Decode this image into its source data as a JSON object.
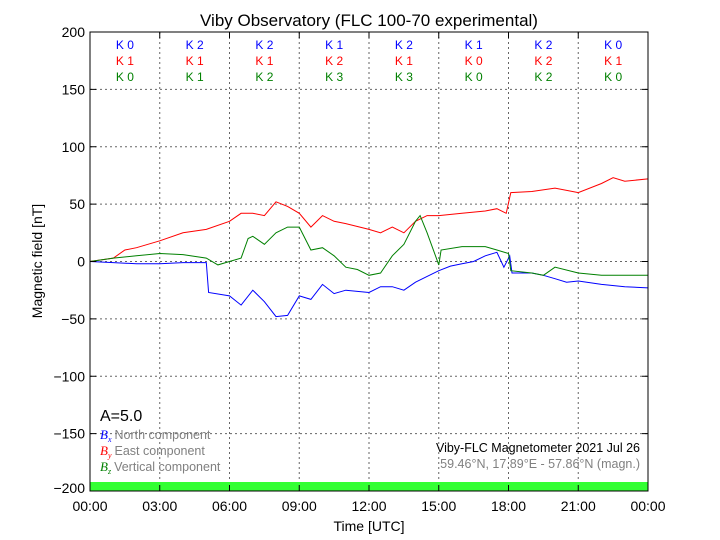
{
  "chart_data": {
    "type": "line",
    "title": "Viby Observatory (FLC 100-70 experimental)",
    "xlabel": "Time [UTC]",
    "ylabel": "Magnetic field [nT]",
    "xlim": [
      0,
      24
    ],
    "ylim": [
      -200,
      200
    ],
    "xticks": [
      "00:00",
      "03:00",
      "06:00",
      "09:00",
      "12:00",
      "15:00",
      "18:00",
      "21:00",
      "00:00"
    ],
    "yticks": [
      200,
      150,
      100,
      50,
      0,
      -50,
      -100,
      -150,
      -200
    ],
    "ytick_labels": [
      "200",
      "150",
      "100",
      "50",
      "0",
      "−50",
      "−100",
      "−150",
      "−200"
    ],
    "grid": true,
    "legend_placement": "bottom-left",
    "a_index": "A=5.0",
    "station": "Viby-FLC Magnetometer 2021 Jul 26",
    "coordinates": "59.46°N, 17.89°E - 57.86°N (magn.)",
    "activity_bar_color": "#33ff33",
    "k_indices": {
      "Bx": [
        "K 0",
        "K 2",
        "K 2",
        "K 1",
        "K 2",
        "K 1",
        "K 2",
        "K 0"
      ],
      "By": [
        "K 1",
        "K 1",
        "K 1",
        "K 2",
        "K 1",
        "K 0",
        "K 2",
        "K 1"
      ],
      "Bz": [
        "K 0",
        "K 1",
        "K 2",
        "K 3",
        "K 3",
        "K 0",
        "K 2",
        "K 0"
      ]
    },
    "series": [
      {
        "key": "Bx",
        "symbol": "B",
        "sub": "x",
        "name": "North component",
        "color": "#0000ff",
        "x": [
          0,
          1,
          2,
          3,
          4,
          5,
          5.1,
          6,
          6.5,
          7,
          7.5,
          8,
          8.5,
          9,
          9.5,
          10,
          10.5,
          11,
          12,
          12.5,
          13,
          13.5,
          14,
          14.5,
          15,
          15.5,
          16,
          16.5,
          17,
          17.5,
          17.8,
          18.05,
          18.15,
          19,
          19.5,
          20,
          20.5,
          21,
          22,
          23,
          24
        ],
        "y": [
          0,
          -1,
          -2,
          -2,
          -1,
          -1,
          -27,
          -30,
          -38,
          -25,
          -35,
          -48,
          -47,
          -30,
          -33,
          -20,
          -28,
          -25,
          -27,
          -22,
          -22,
          -25,
          -18,
          -13,
          -8,
          -4,
          -2,
          0,
          5,
          8,
          -5,
          5,
          -10,
          -10,
          -12,
          -15,
          -18,
          -17,
          -20,
          -22,
          -23
        ]
      },
      {
        "key": "By",
        "symbol": "B",
        "sub": "y",
        "name": "East component",
        "color": "#ff0000",
        "x": [
          0,
          1,
          1.5,
          2,
          3,
          4,
          5,
          6,
          6.5,
          7,
          7.5,
          8,
          8.5,
          9,
          9.5,
          10,
          10.5,
          11,
          12,
          12.5,
          13,
          13.5,
          14,
          14.5,
          15,
          16,
          17,
          17.5,
          17.9,
          18.1,
          19,
          20,
          21,
          22,
          22.5,
          23,
          24
        ],
        "y": [
          0,
          3,
          10,
          12,
          18,
          25,
          28,
          35,
          42,
          42,
          40,
          52,
          48,
          42,
          30,
          40,
          35,
          33,
          28,
          25,
          30,
          25,
          35,
          40,
          40,
          42,
          44,
          46,
          42,
          60,
          61,
          64,
          60,
          68,
          73,
          70,
          72
        ]
      },
      {
        "key": "Bz",
        "symbol": "B",
        "sub": "z",
        "name": "Vertical component",
        "color": "#008000",
        "x": [
          0,
          1,
          2,
          3,
          4,
          5,
          5.5,
          6,
          6.5,
          6.8,
          7,
          7.5,
          8,
          8.5,
          9,
          9.5,
          10,
          10.5,
          11,
          11.5,
          12,
          12.5,
          13,
          13.5,
          14,
          14.2,
          14.5,
          15,
          15.1,
          16,
          17,
          17.5,
          18,
          18.1,
          19,
          19.5,
          20,
          21,
          22,
          23,
          24
        ],
        "y": [
          0,
          3,
          5,
          7,
          6,
          3,
          -3,
          0,
          3,
          20,
          22,
          15,
          25,
          30,
          30,
          10,
          12,
          5,
          -5,
          -7,
          -12,
          -10,
          5,
          15,
          35,
          40,
          25,
          -3,
          10,
          13,
          13,
          10,
          7,
          -8,
          -10,
          -12,
          -5,
          -10,
          -12,
          -12,
          -12
        ]
      }
    ]
  }
}
